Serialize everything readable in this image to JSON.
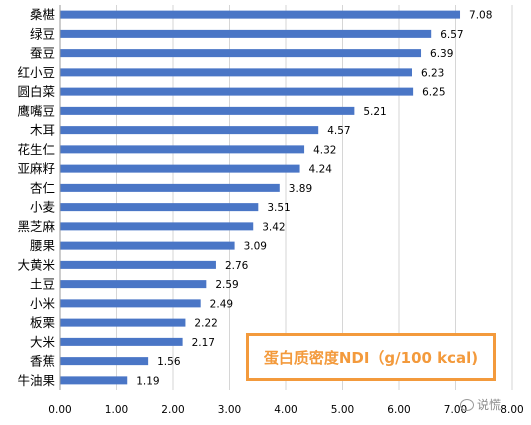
{
  "chart_data": {
    "type": "bar",
    "orientation": "horizontal",
    "categories": [
      "桑椹",
      "绿豆",
      "蚕豆",
      "红小豆",
      "圆白菜",
      "鹰嘴豆",
      "木耳",
      "花生仁",
      "亚麻籽",
      "杏仁",
      "小麦",
      "黑芝麻",
      "腰果",
      "大黄米",
      "土豆",
      "小米",
      "板栗",
      "大米",
      "香蕉",
      "牛油果"
    ],
    "values": [
      7.08,
      6.57,
      6.39,
      6.23,
      6.25,
      5.21,
      4.57,
      4.32,
      4.24,
      3.89,
      3.51,
      3.42,
      3.09,
      2.76,
      2.59,
      2.49,
      2.22,
      2.17,
      1.56,
      1.19
    ],
    "value_labels": [
      "7.08",
      "6.57",
      "6.39",
      "6.23",
      "6.25",
      "5.21",
      "4.57",
      "4.32",
      "4.24",
      "3.89",
      "3.51",
      "3.42",
      "3.09",
      "2.76",
      "2.59",
      "2.49",
      "2.22",
      "2.17",
      "1.56",
      "1.19"
    ],
    "xlim": [
      0,
      8
    ],
    "xticks": [
      "0.00",
      "1.00",
      "2.00",
      "3.00",
      "4.00",
      "5.00",
      "6.00",
      "7.00",
      "8.00"
    ],
    "grid": "vertical",
    "bar_color": "#4a76c6",
    "legend": {
      "text": "蛋白质密度NDI（g/100 kcal)",
      "color": "#f39a3c",
      "position": "bottom-right"
    }
  },
  "watermark": {
    "text": "说慌",
    "icon": "wechat-icon"
  }
}
